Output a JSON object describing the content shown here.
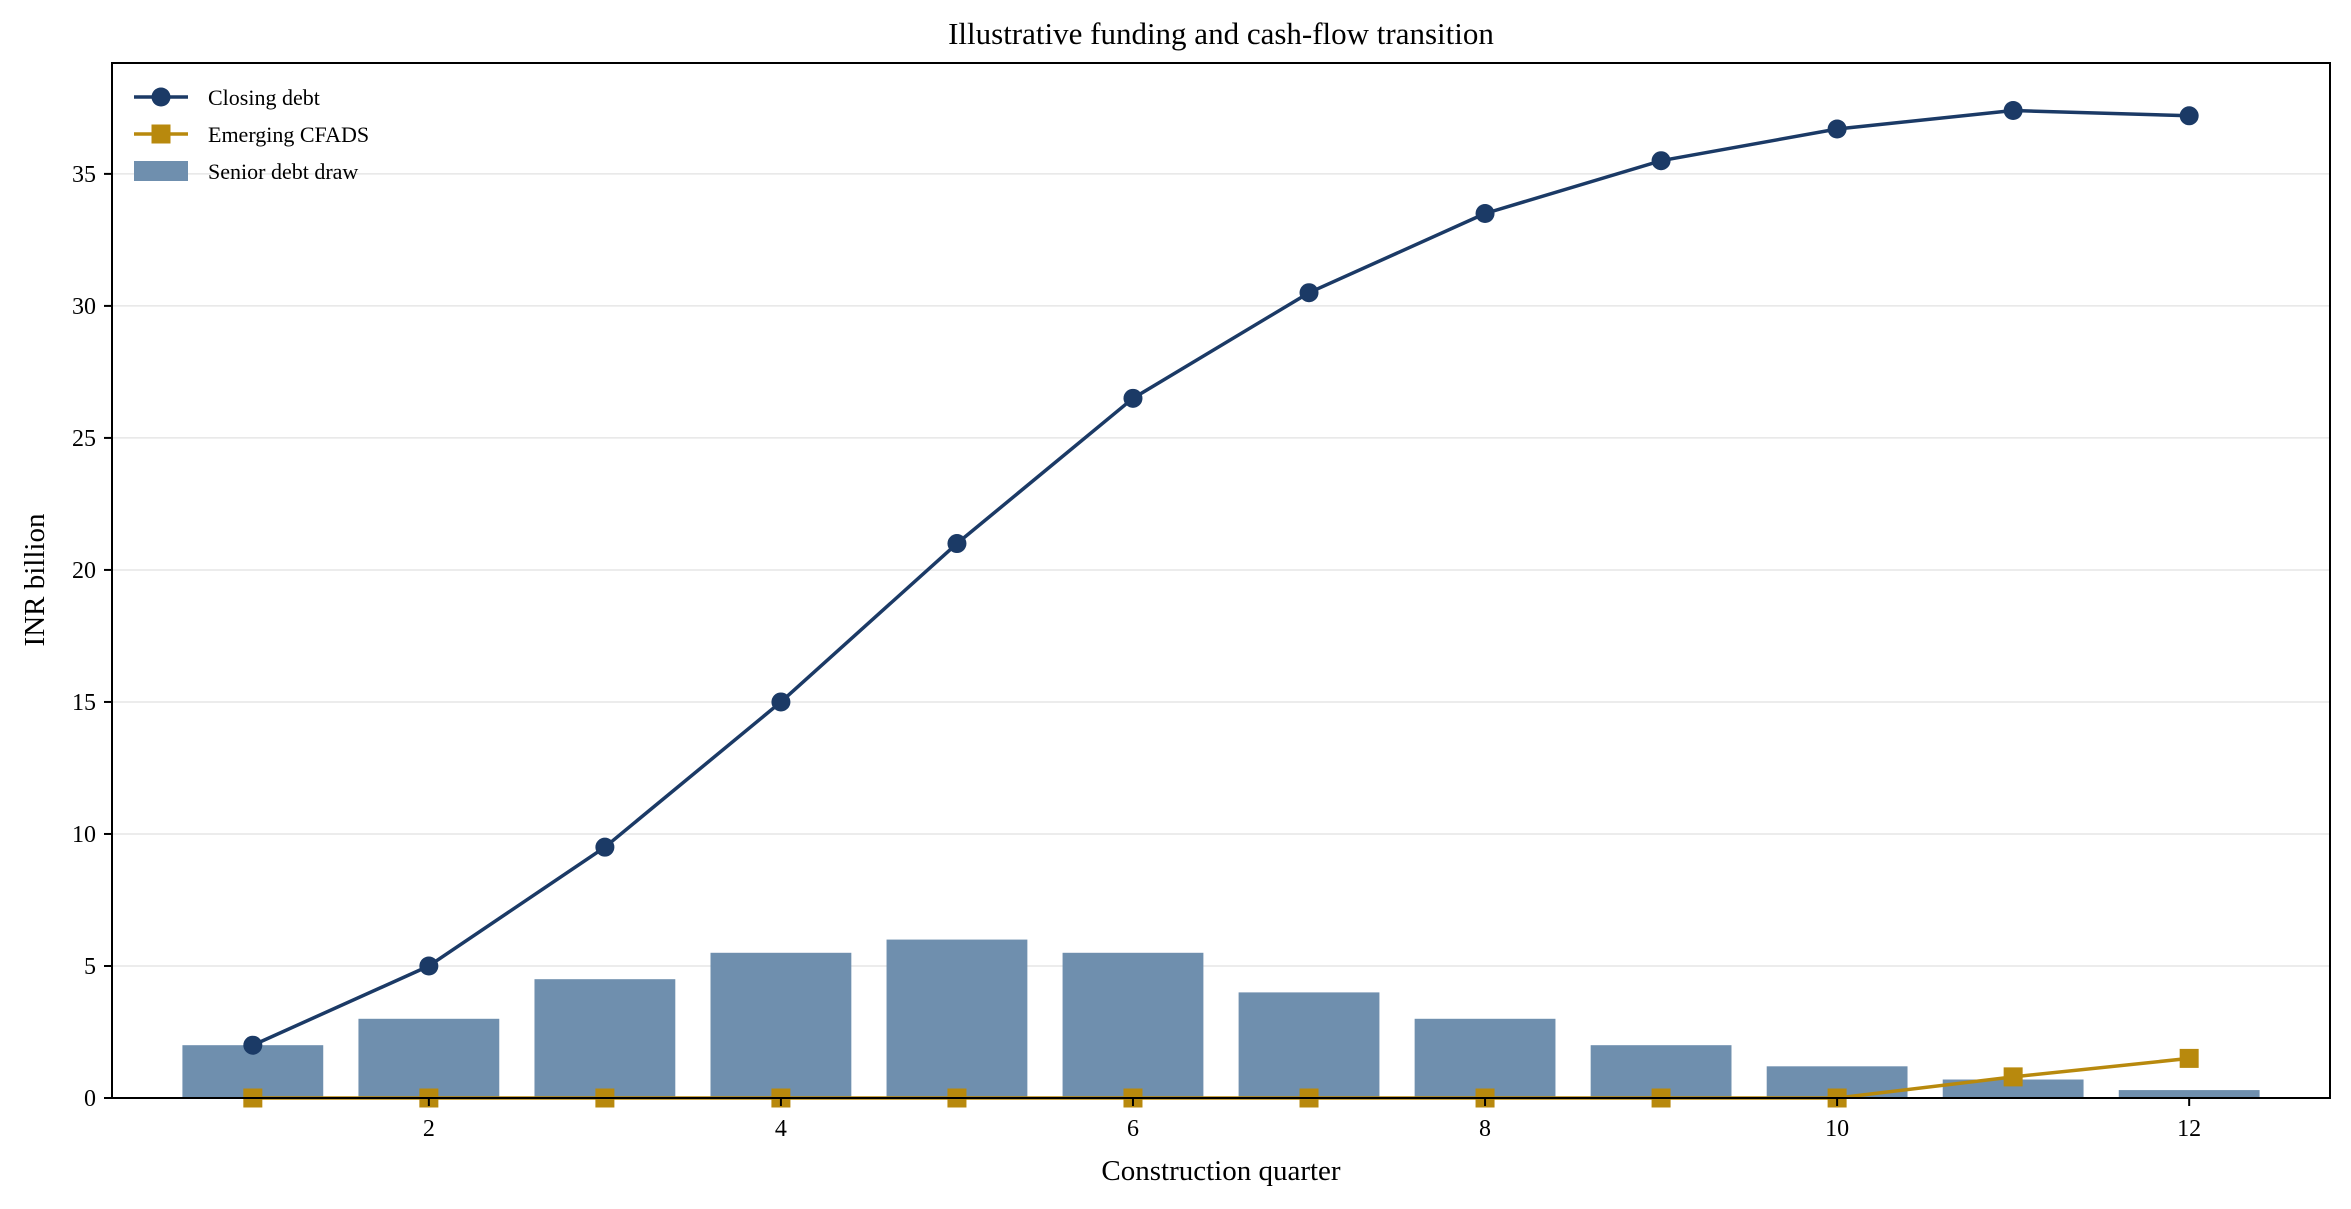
{
  "chart_data": {
    "type": "bar+line",
    "title": "Illustrative funding and cash-flow transition",
    "xlabel": "Construction quarter",
    "ylabel": "INR billion",
    "xlim": [
      0.2,
      12.8
    ],
    "ylim": [
      0,
      39.2
    ],
    "x_ticks": [
      2,
      4,
      6,
      8,
      10,
      12
    ],
    "y_ticks": [
      0,
      5,
      10,
      15,
      20,
      25,
      30,
      35
    ],
    "grid": "horizontal",
    "legend_position": "top-left",
    "x": [
      1,
      2,
      3,
      4,
      5,
      6,
      7,
      8,
      9,
      10,
      11,
      12
    ],
    "series": [
      {
        "name": "Closing debt",
        "kind": "line",
        "marker": "circle",
        "color": "#1b3a66",
        "values": [
          2.0,
          5.0,
          9.5,
          15.0,
          21.0,
          26.5,
          30.5,
          33.5,
          35.5,
          36.7,
          37.4,
          37.2
        ]
      },
      {
        "name": "Emerging CFADS",
        "kind": "line",
        "marker": "square",
        "color": "#b8890d",
        "values": [
          0,
          0,
          0,
          0,
          0,
          0,
          0,
          0,
          0,
          0,
          0.8,
          1.5
        ]
      },
      {
        "name": "Senior debt draw",
        "kind": "bar",
        "color": "#6f8fae",
        "values": [
          2.0,
          3.0,
          4.5,
          5.5,
          6.0,
          5.5,
          4.0,
          3.0,
          2.0,
          1.2,
          0.7,
          0.3
        ]
      }
    ]
  }
}
